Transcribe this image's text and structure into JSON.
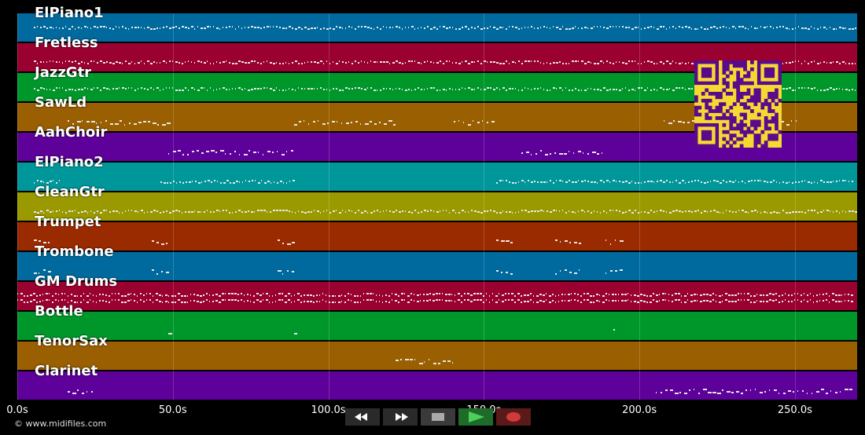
{
  "tracks": [
    {
      "name": "ElPiano1",
      "color": "#006a9f"
    },
    {
      "name": "Fretless",
      "color": "#9a0030"
    },
    {
      "name": "JazzGtr",
      "color": "#00972a"
    },
    {
      "name": "SawLd",
      "color": "#9a5f00"
    },
    {
      "name": "AahChoir",
      "color": "#5e009a"
    },
    {
      "name": "ElPiano2",
      "color": "#00979a"
    },
    {
      "name": "CleanGtr",
      "color": "#9a9a00"
    },
    {
      "name": "Trumpet",
      "color": "#9a2a00"
    },
    {
      "name": "Trombone",
      "color": "#006a9f"
    },
    {
      "name": "GM Drums",
      "color": "#9a0030"
    },
    {
      "name": "Bottle",
      "color": "#00972a"
    },
    {
      "name": "TenorSax",
      "color": "#9a5f00"
    },
    {
      "name": "Clarinet",
      "color": "#5e009a"
    }
  ],
  "time_axis": {
    "ticks": [
      "0.0s",
      "50.0s",
      "100.0s",
      "150.0s",
      "200.0s",
      "250.0s"
    ],
    "values": [
      0,
      50,
      100,
      150,
      200,
      250
    ],
    "max": 270
  },
  "copyright": "© www.midifiles.com",
  "transport": {
    "rewind_icon": "rewind-icon",
    "forward_icon": "fast-forward-icon",
    "stop_icon": "stop-icon",
    "play_icon": "play-icon",
    "record_icon": "record-icon"
  },
  "colors": {
    "background": "#000000",
    "qr_bg": "#f5d933",
    "qr_fg": "#5a0a8a"
  }
}
